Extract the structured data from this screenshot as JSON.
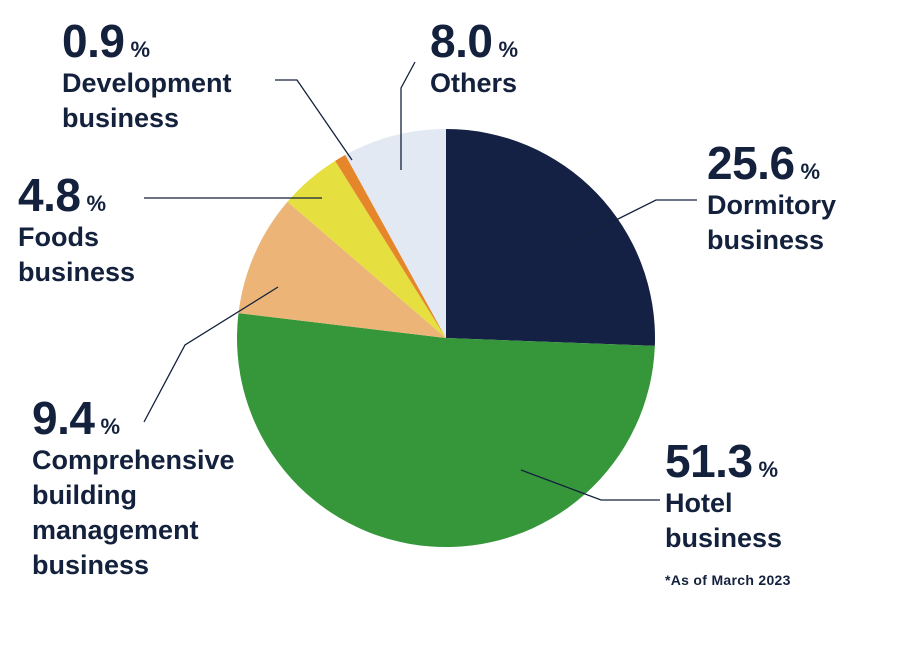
{
  "chart_data": {
    "type": "pie",
    "start_angle_deg": 0,
    "direction": "clockwise",
    "percent_unit": "%",
    "slices": [
      {
        "label": "Dormitory\nbusiness",
        "value": 25.6,
        "value_text": "25.6",
        "color": "#142044"
      },
      {
        "label": "Hotel\nbusiness",
        "value": 51.3,
        "value_text": "51.3",
        "color": "#36963a"
      },
      {
        "label": "Comprehensive\nbuilding\nmanagement\nbusiness",
        "value": 9.4,
        "value_text": "9.4",
        "color": "#ecb577"
      },
      {
        "label": "Foods\nbusiness",
        "value": 4.8,
        "value_text": "4.8",
        "color": "#e5e040"
      },
      {
        "label": "Development\nbusiness",
        "value": 0.9,
        "value_text": "0.9",
        "color": "#e5862a"
      },
      {
        "label": "Others",
        "value": 8.0,
        "value_text": "8.0",
        "color": "#e2e9f3"
      }
    ],
    "note": "*As of March 2023"
  }
}
